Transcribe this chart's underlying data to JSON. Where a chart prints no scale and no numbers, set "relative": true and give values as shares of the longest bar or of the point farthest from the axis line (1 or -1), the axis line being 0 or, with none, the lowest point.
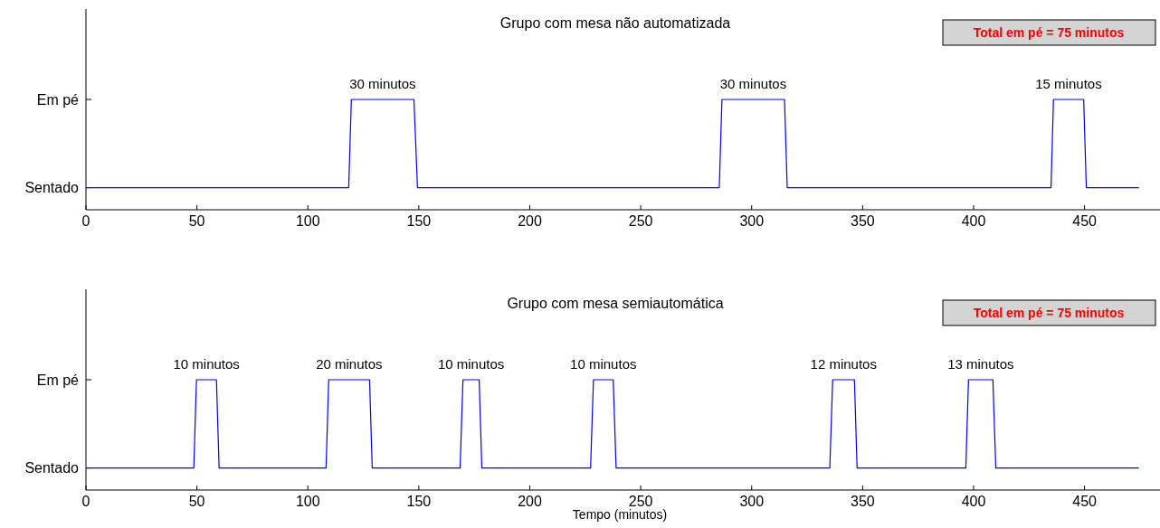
{
  "chart_data": [
    {
      "type": "line",
      "title": "Grupo com mesa não automatizada",
      "relative": true,
      "y_categories": [
        "Em pé",
        "Sentado"
      ],
      "xlim": [
        0,
        484
      ],
      "xticks": [
        0,
        50,
        100,
        150,
        200,
        250,
        300,
        350,
        400,
        450
      ],
      "marker": "none",
      "line_style": "solid",
      "series": [
        {
          "color": "#0000ff",
          "x": [
            0,
            118.4,
            119.6,
            147.8,
            149.4,
            285.4,
            286.6,
            314.8,
            316,
            434.9,
            436,
            449.6,
            450.8,
            474.5
          ],
          "values": [
            0.2,
            0.2,
            1,
            1,
            0.2,
            0.2,
            1,
            1,
            0.2,
            0.2,
            1,
            1,
            0.2,
            0.2
          ]
        }
      ],
      "annotations": [
        "30 minutos",
        "30 minutos",
        "15 minutos",
        "Total em pé = 75 minutos"
      ]
    },
    {
      "type": "line",
      "title": "Grupo com mesa semiautomática",
      "xlabel": "Tempo (minutos)",
      "relative": true,
      "y_categories": [
        "Em pé",
        "Sentado"
      ],
      "xlim": [
        0,
        484
      ],
      "xticks": [
        0,
        50,
        100,
        150,
        200,
        250,
        300,
        350,
        400,
        450
      ],
      "marker": "none",
      "line_style": "solid",
      "series": [
        {
          "color": "#0000ff",
          "x": [
            0,
            48.6,
            49.8,
            58.8,
            60,
            108.2,
            109.4,
            127.8,
            129,
            168.6,
            169.9,
            177.2,
            178.4,
            227.4,
            228.7,
            237.6,
            238.9,
            335.2,
            336.5,
            346.3,
            347.5,
            396.5,
            397.7,
            408.7,
            410,
            474.5
          ],
          "values": [
            0.2,
            0.2,
            1,
            1,
            0.2,
            0.2,
            1,
            1,
            0.2,
            0.2,
            1,
            1,
            0.2,
            0.2,
            1,
            1,
            0.2,
            0.2,
            1,
            1,
            0.2,
            0.2,
            1,
            1,
            0.2,
            0.2
          ]
        }
      ],
      "annotations": [
        "10 minutos",
        "20 minutos",
        "10 minutos",
        "10 minutos",
        "12 minutos",
        "13 minutos",
        "Total em pé = 75 minutos"
      ]
    }
  ]
}
